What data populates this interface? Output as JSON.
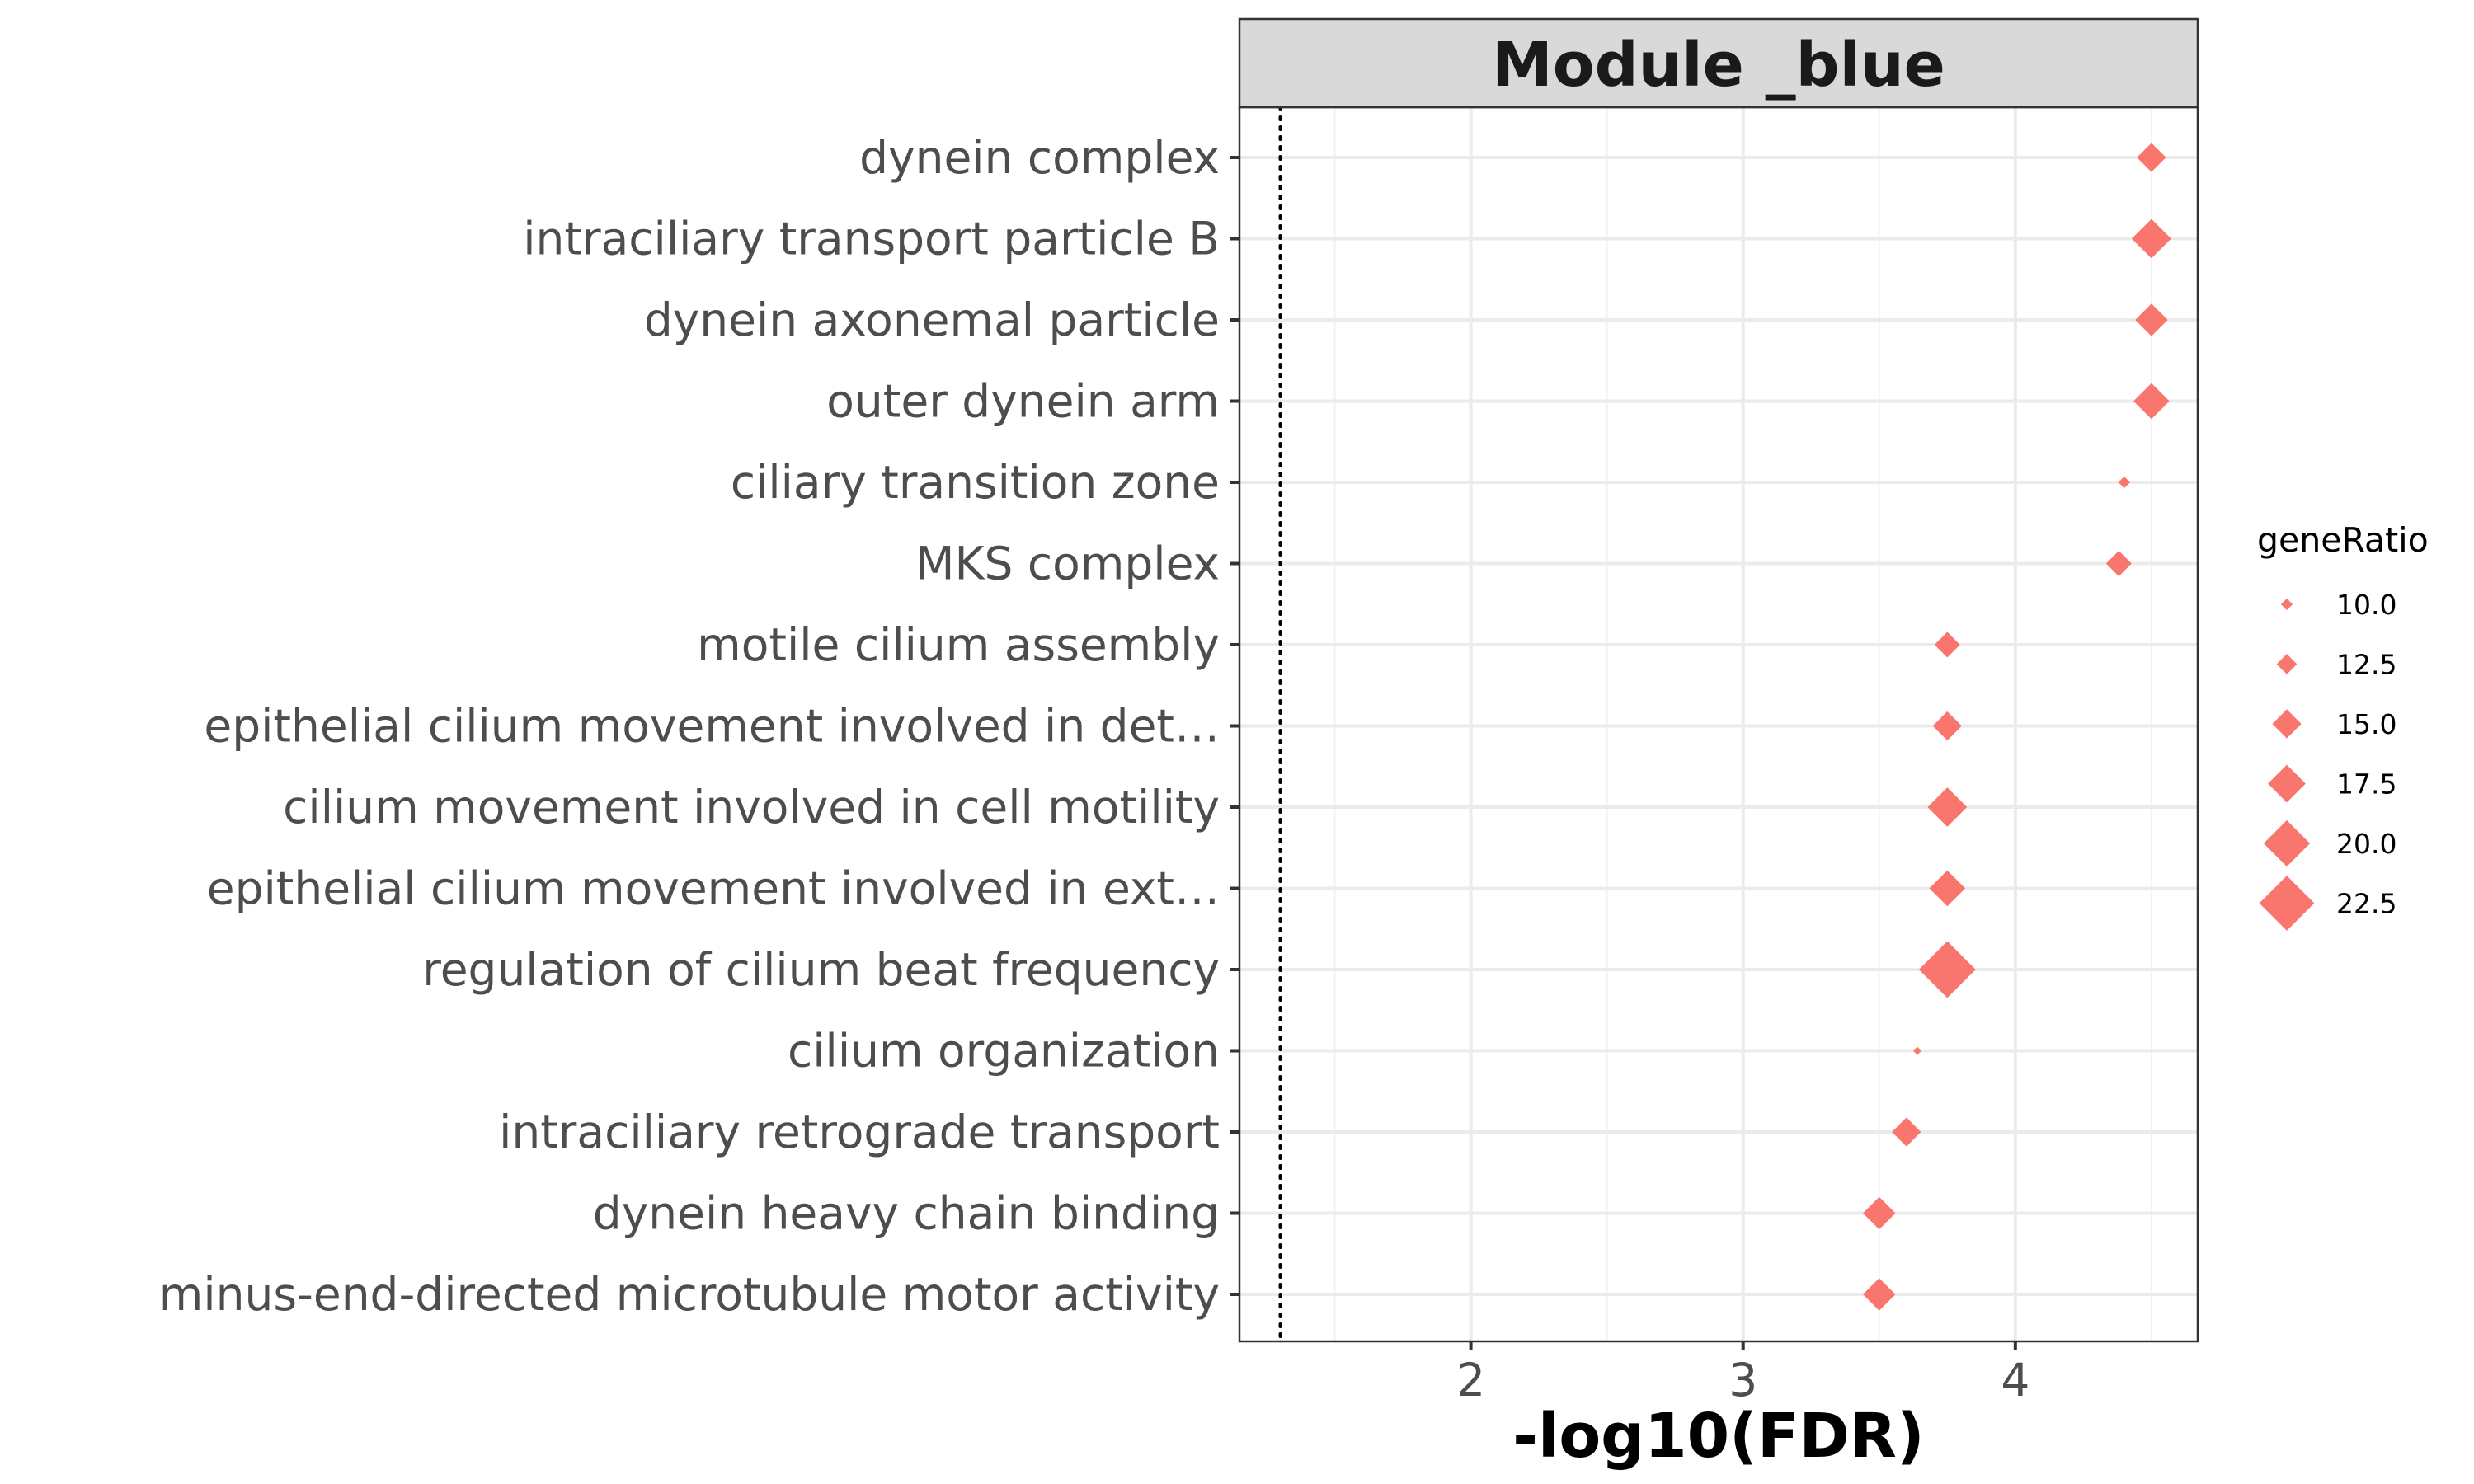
{
  "chart_data": {
    "type": "scatter",
    "title": "Module _blue",
    "xlabel": "-log10(FDR)",
    "ylabel": "",
    "xlim": [
      1.15,
      4.67
    ],
    "xticks": [
      2,
      3,
      4
    ],
    "x_minor_ticks": [
      1.5,
      2.5,
      3.5,
      4.5
    ],
    "grid": true,
    "reference_line": {
      "x": 1.3,
      "style": "dotted"
    },
    "marker": "diamond",
    "color": "#F8766D",
    "categories": [
      "dynein complex",
      "intraciliary transport particle B",
      "dynein axonemal particle",
      "outer dynein arm",
      "ciliary transition zone",
      "MKS complex",
      "motile cilium assembly",
      "epithelial cilium movement involved in det…",
      "cilium movement involved in cell motility",
      "epithelial cilium movement involved in ext…",
      "regulation of cilium beat frequency",
      "cilium organization",
      "intraciliary retrograde transport",
      "dynein heavy chain binding",
      "minus-end-directed microtubule motor activity"
    ],
    "points": [
      {
        "term": "dynein complex",
        "x": 4.5,
        "geneRatio": 15.0
      },
      {
        "term": "intraciliary transport particle B",
        "x": 4.5,
        "geneRatio": 18.0
      },
      {
        "term": "dynein axonemal particle",
        "x": 4.5,
        "geneRatio": 16.0
      },
      {
        "term": "outer dynein arm",
        "x": 4.5,
        "geneRatio": 17.0
      },
      {
        "term": "ciliary transition zone",
        "x": 4.4,
        "geneRatio": 10.0
      },
      {
        "term": "MKS complex",
        "x": 4.38,
        "geneRatio": 14.0
      },
      {
        "term": "motile cilium assembly",
        "x": 3.75,
        "geneRatio": 14.0
      },
      {
        "term": "epithelial cilium movement involved in det…",
        "x": 3.75,
        "geneRatio": 15.0
      },
      {
        "term": "cilium movement involved in cell motility",
        "x": 3.75,
        "geneRatio": 18.0
      },
      {
        "term": "epithelial cilium movement involved in ext…",
        "x": 3.75,
        "geneRatio": 17.0
      },
      {
        "term": "regulation of cilium beat frequency",
        "x": 3.75,
        "geneRatio": 23.0
      },
      {
        "term": "cilium organization",
        "x": 3.64,
        "geneRatio": 9.0
      },
      {
        "term": "intraciliary retrograde transport",
        "x": 3.6,
        "geneRatio": 15.0
      },
      {
        "term": "dynein heavy chain binding",
        "x": 3.5,
        "geneRatio": 16.0
      },
      {
        "term": "minus-end-directed microtubule motor activity",
        "x": 3.5,
        "geneRatio": 16.0
      }
    ],
    "legend": {
      "title": "geneRatio",
      "placement": "right",
      "entries": [
        {
          "label": "10.0",
          "value": 10.0
        },
        {
          "label": "12.5",
          "value": 12.5
        },
        {
          "label": "15.0",
          "value": 15.0
        },
        {
          "label": "17.5",
          "value": 17.5
        },
        {
          "label": "20.0",
          "value": 20.0
        },
        {
          "label": "22.5",
          "value": 22.5
        }
      ]
    }
  }
}
